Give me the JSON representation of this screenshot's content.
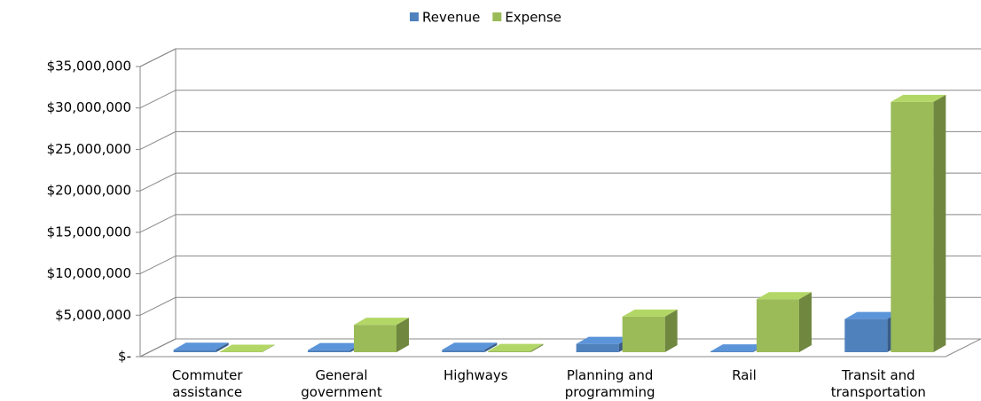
{
  "chart_data": {
    "type": "bar3d",
    "categories": [
      "Commuter assistance",
      "General government",
      "Highways",
      "Planning and programming",
      "Rail",
      "Transit and transportation"
    ],
    "series": [
      {
        "name": "Revenue",
        "color": "#4f81bd",
        "values": [
          300000,
          250000,
          300000,
          1000000,
          100000,
          4000000
        ]
      },
      {
        "name": "Expense",
        "color": "#9bbb59",
        "values": [
          50000,
          3300000,
          150000,
          4300000,
          6400000,
          30200000
        ]
      }
    ],
    "ylim": [
      0,
      35000000
    ],
    "yticks": [
      {
        "value": 0,
        "label": "$-"
      },
      {
        "value": 5000000,
        "label": "$5,000,000"
      },
      {
        "value": 10000000,
        "label": "$10,000,000"
      },
      {
        "value": 15000000,
        "label": "$15,000,000"
      },
      {
        "value": 20000000,
        "label": "$20,000,000"
      },
      {
        "value": 25000000,
        "label": "$25,000,000"
      },
      {
        "value": 30000000,
        "label": "$30,000,000"
      },
      {
        "value": 35000000,
        "label": "$35,000,000"
      }
    ],
    "grid": true,
    "legend": "top"
  }
}
